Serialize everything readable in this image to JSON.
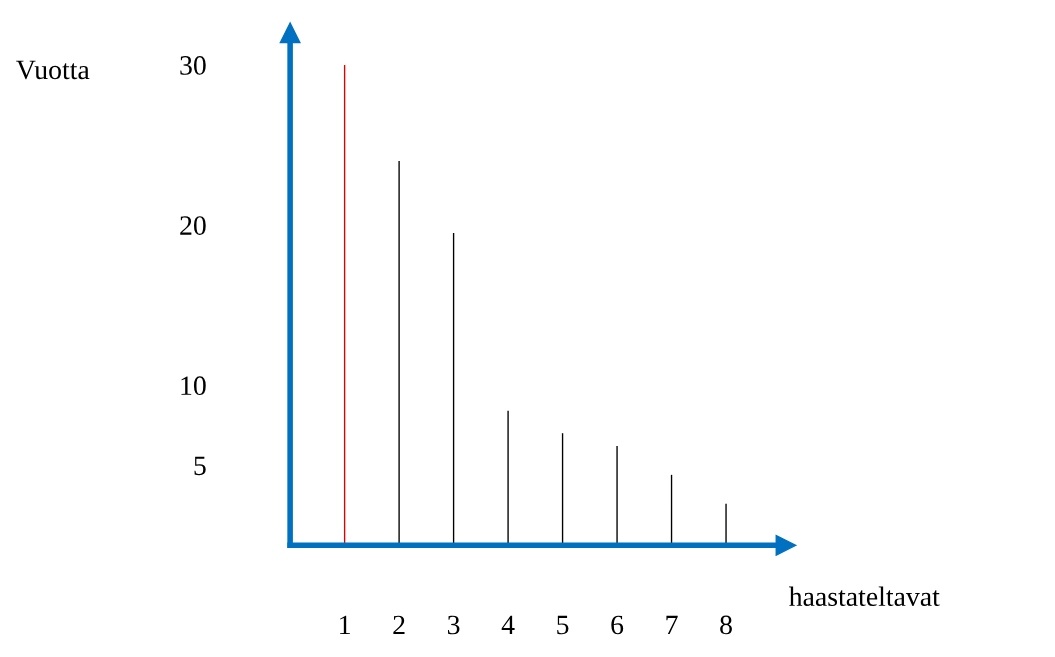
{
  "chart_data": {
    "type": "bar",
    "ylabel": "Vuotta",
    "xlabel": "haastateltavat",
    "categories": [
      "1",
      "2",
      "3",
      "4",
      "5",
      "6",
      "7",
      "8"
    ],
    "values": [
      30,
      24,
      19.5,
      8.4,
      7,
      6.2,
      4.4,
      2.6
    ],
    "colors": [
      "#e00000",
      "#000000",
      "#000000",
      "#000000",
      "#000000",
      "#000000",
      "#000000",
      "#000000"
    ],
    "ylim": [
      0,
      32
    ],
    "yticks": [
      5,
      10,
      20,
      30
    ],
    "grid": false,
    "legend": false
  }
}
